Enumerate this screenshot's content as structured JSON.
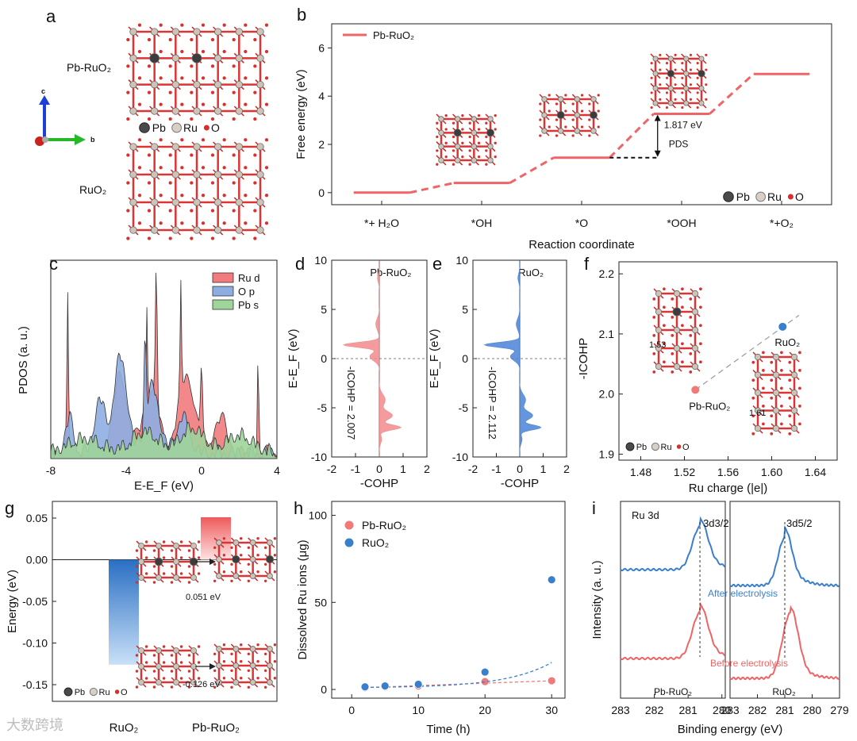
{
  "panel_letters": [
    "a",
    "b",
    "c",
    "d",
    "e",
    "f",
    "g",
    "h",
    "i"
  ],
  "legend_atoms": {
    "pb": "Pb",
    "ru": "Ru",
    "o": "O"
  },
  "panel_a": {
    "top_label": "Pb-RuO2",
    "bottom_label": "RuO2",
    "axis_c": "c",
    "axis_b": "b"
  },
  "panel_f_labels": {
    "left_value": "1.53",
    "right_value": "1.61"
  },
  "panel_g_labels": {
    "upper_value": "0.051 eV",
    "lower_value": "-0.126 eV"
  },
  "watermark": "大数跨境",
  "colors": {
    "red": "#ef6466",
    "blue": "#3a7fcc",
    "green": "#7fc97a",
    "dark": "#333333"
  },
  "chart_data": [
    {
      "panel": "b",
      "type": "line",
      "xlabel": "Reaction coordinate",
      "ylabel": "Free energy (eV)",
      "ylim": [
        -0.5,
        7
      ],
      "yticks": [
        0,
        2,
        4,
        6
      ],
      "categories": [
        "*+ H2O",
        "*OH",
        "*O",
        "*OOH",
        "*+O2"
      ],
      "series": [
        {
          "name": "Pb-RuO2",
          "values": [
            0,
            0.4,
            1.45,
            3.267,
            4.92
          ]
        }
      ],
      "annotations": [
        "1.817 eV",
        "PDS"
      ]
    },
    {
      "panel": "c",
      "type": "area",
      "xlabel": "E-EF (eV)",
      "ylabel": "PDOS (a. u.)",
      "xlim": [
        -8,
        4
      ],
      "xticks": [
        -8,
        -4,
        0,
        4
      ],
      "series": [
        {
          "name": "Ru d"
        },
        {
          "name": "O p"
        },
        {
          "name": "Pb s"
        }
      ]
    },
    {
      "panel": "d",
      "type": "area",
      "title": "Pb-RuO2",
      "xlabel": "-COHP",
      "ylabel": "E-EF (eV)",
      "xlim": [
        -2,
        2
      ],
      "ylim": [
        -10,
        10
      ],
      "xticks": [
        -2,
        -1,
        0,
        1,
        2
      ],
      "yticks": [
        10,
        5,
        0,
        -5,
        -10
      ],
      "annotation": "-ICOHP = 2.007"
    },
    {
      "panel": "e",
      "type": "area",
      "title": "RuO2",
      "xlabel": "-COHP",
      "ylabel": "E-EF (eV)",
      "xlim": [
        -2,
        2
      ],
      "ylim": [
        -10,
        10
      ],
      "xticks": [
        -2,
        -1,
        0,
        1,
        2
      ],
      "yticks": [
        10,
        5,
        0,
        -5,
        -10
      ],
      "annotation": "-ICOHP = 2.112"
    },
    {
      "panel": "f",
      "type": "scatter",
      "xlabel": "Ru charge (|e|)",
      "ylabel": "-ICOHP",
      "xlim": [
        1.46,
        1.66
      ],
      "ylim": [
        1.89,
        2.22
      ],
      "xticks": [
        1.48,
        1.52,
        1.56,
        1.6,
        1.64
      ],
      "yticks": [
        1.9,
        2.0,
        2.1,
        2.2
      ],
      "points": [
        {
          "label": "Pb-RuO2",
          "x": 1.53,
          "y": 2.007
        },
        {
          "label": "RuO2",
          "x": 1.61,
          "y": 2.112
        }
      ]
    },
    {
      "panel": "g",
      "type": "bar",
      "ylabel": "Energy (eV)",
      "ylim": [
        -0.17,
        0.07
      ],
      "yticks": [
        0.05,
        0.0,
        -0.05,
        -0.1,
        -0.15
      ],
      "categories": [
        "RuO2",
        "Pb-RuO2"
      ],
      "values": [
        -0.126,
        0.051
      ]
    },
    {
      "panel": "h",
      "type": "scatter",
      "xlabel": "Time (h)",
      "ylabel": "Dissolved Ru ions (μg)",
      "xlim": [
        -3,
        32
      ],
      "ylim": [
        -5,
        108
      ],
      "xticks": [
        0,
        10,
        20,
        30
      ],
      "yticks": [
        0,
        50,
        100
      ],
      "series": [
        {
          "name": "Pb-RuO2",
          "x": [
            2,
            5,
            10,
            20,
            30
          ],
          "values": [
            1,
            1.5,
            2,
            4.5,
            5
          ]
        },
        {
          "name": "RuO2",
          "x": [
            2,
            5,
            10,
            20,
            30
          ],
          "values": [
            1.5,
            2,
            3,
            10,
            63
          ]
        }
      ]
    },
    {
      "panel": "i",
      "type": "line",
      "xlabel": "Binding energy (eV)",
      "ylabel": "Intensity (a. u.)",
      "title": "Ru 3d",
      "xticks_left": [
        283,
        282,
        281,
        280
      ],
      "xticks_right": [
        283,
        282,
        281,
        280,
        279
      ],
      "peak_labels": [
        "3d3/2",
        "3d5/2"
      ],
      "series": [
        {
          "name": "After electrolysis"
        },
        {
          "name": "Before electrolysis"
        }
      ],
      "sample_labels": [
        "Pb-RuO2",
        "RuO2"
      ]
    }
  ]
}
